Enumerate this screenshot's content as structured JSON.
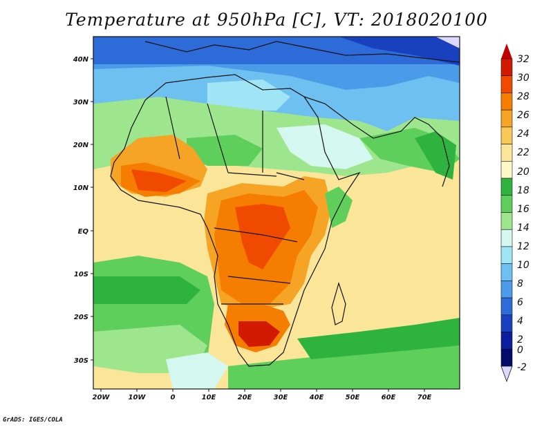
{
  "title": "Temperature at 950hPa [C], VT: 2018020100",
  "credit": "GrADS: IGES/COLA",
  "map": {
    "lat_labels": [
      "40N",
      "30N",
      "20N",
      "10N",
      "EQ",
      "10S",
      "20S",
      "30S"
    ],
    "lon_labels": [
      "20W",
      "10W",
      "0",
      "10E",
      "20E",
      "30E",
      "40E",
      "50E",
      "60E",
      "70E"
    ]
  },
  "colorbar": {
    "labels": [
      "32",
      "30",
      "28",
      "26",
      "24",
      "22",
      "20",
      "18",
      "16",
      "14",
      "12",
      "10",
      "8",
      "6",
      "4",
      "2",
      "0",
      "-2"
    ],
    "colors": [
      "#d11a00",
      "#f04a00",
      "#f57d00",
      "#f5a425",
      "#f8c85a",
      "#fbe599",
      "#fef8c7",
      "#2fb33f",
      "#5fcf5c",
      "#9ee68e",
      "#d4f7ef",
      "#9fe5f5",
      "#6ec0f0",
      "#4c9be8",
      "#2d6bd8",
      "#1840bf",
      "#0a1e9e",
      "#030b6b"
    ],
    "top_arrow_color": "#c00000",
    "bottom_arrow_color": "#ddd8ff"
  }
}
